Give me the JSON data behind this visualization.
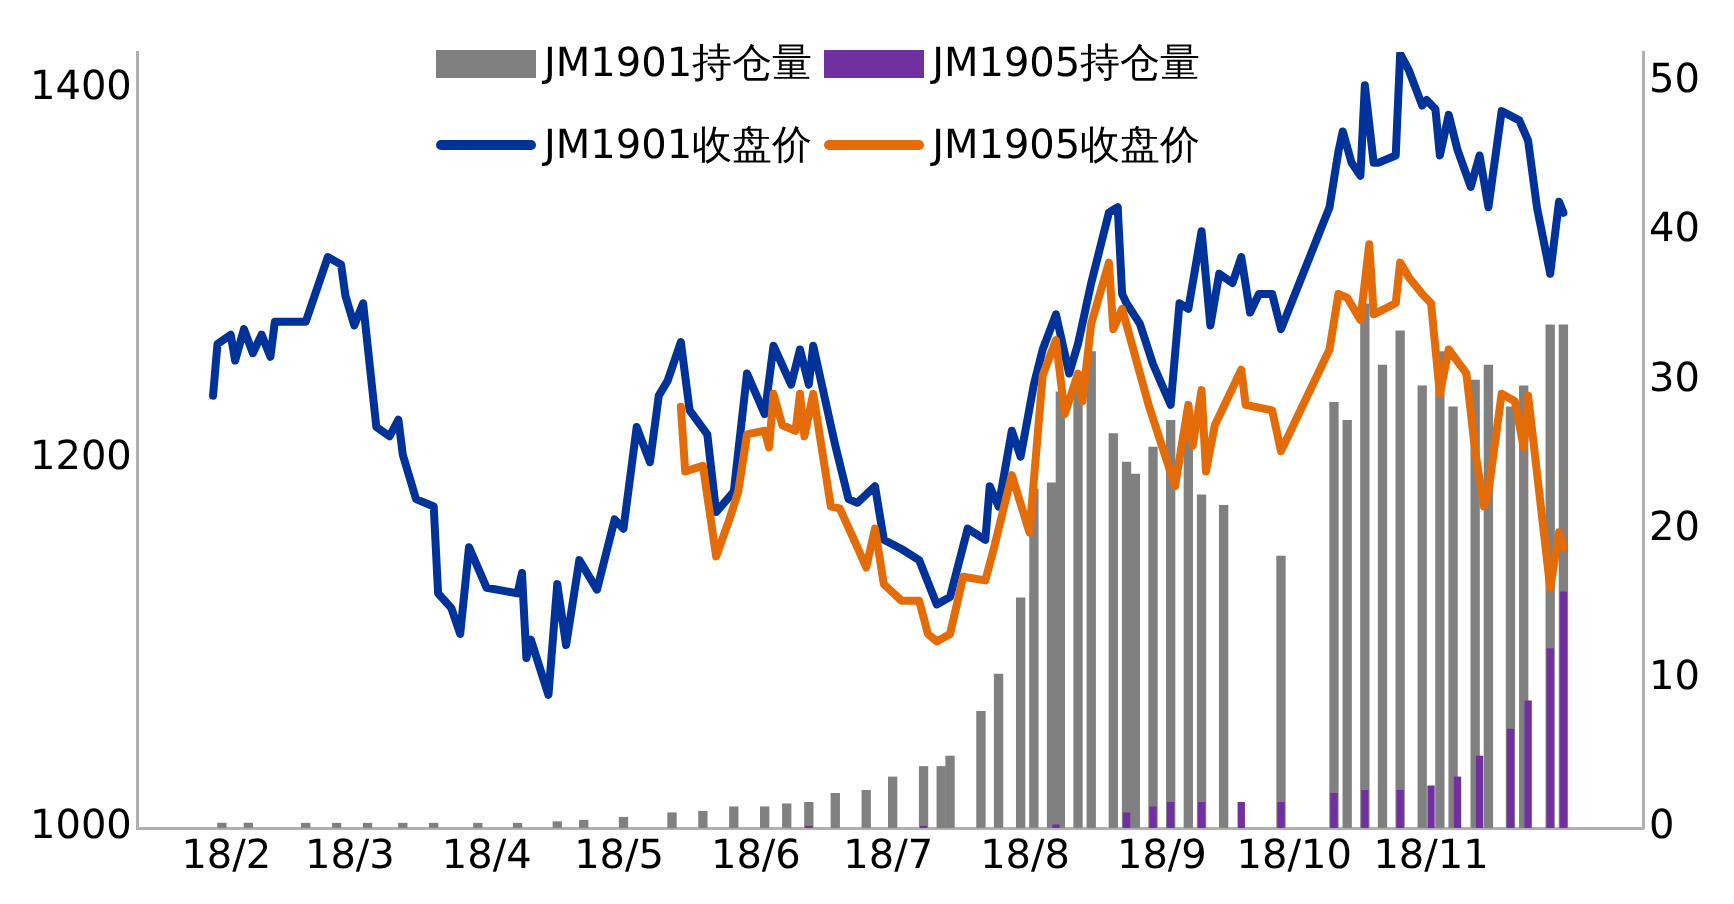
{
  "chart_data": {
    "type": "line",
    "xlim": [
      "--01-29",
      "--12-02"
    ],
    "xticks": [
      {
        "value": "--02-01",
        "label": "18/2"
      },
      {
        "value": "--03-01",
        "label": "18/3"
      },
      {
        "value": "--04-01",
        "label": "18/4"
      },
      {
        "value": "--05-01",
        "label": "18/5"
      },
      {
        "value": "--06-01",
        "label": "18/6"
      },
      {
        "value": "--07-01",
        "label": "18/7"
      },
      {
        "value": "--08-01",
        "label": "18/8"
      },
      {
        "value": "--09-01",
        "label": "18/9"
      },
      {
        "value": "--10-01",
        "label": "18/10"
      },
      {
        "value": "--11-01",
        "label": "18/11"
      }
    ],
    "ylim": [
      1000,
      1420
    ],
    "yticks": [
      1000,
      1200,
      1400
    ],
    "y2lim": [
      0,
      52
    ],
    "y2ticks": [
      0,
      10,
      20,
      30,
      40,
      50
    ],
    "grid": false,
    "legend": "top",
    "marker": "none",
    "line_style": "solid",
    "series": [
      {
        "name": "JM1901持仓量",
        "type": "bar",
        "axis": "y2",
        "color": "#808080",
        "x": [
          "--01-31",
          "--02-06",
          "--02-19",
          "--02-26",
          "--03-05",
          "--03-13",
          "--03-20",
          "--03-30",
          "--04-08",
          "--04-17",
          "--04-23",
          "--05-02",
          "--05-13",
          "--05-20",
          "--05-27",
          "--06-03",
          "--06-08",
          "--06-13",
          "--06-19",
          "--06-26",
          "--07-02",
          "--07-09",
          "--07-13",
          "--07-15",
          "--07-22",
          "--07-26",
          "--07-31",
          "--08-03",
          "--08-07",
          "--08-09",
          "--08-13",
          "--08-16",
          "--08-21",
          "--08-24",
          "--08-26",
          "--08-30",
          "--09-03",
          "--09-07",
          "--09-10",
          "--09-15",
          "--09-28",
          "--10-10",
          "--10-13",
          "--10-17",
          "--10-21",
          "--10-25",
          "--10-30",
          "--11-03",
          "--11-06",
          "--11-11",
          "--11-14",
          "--11-19",
          "--11-22",
          "--11-28",
          "--12-01"
        ],
        "values": [
          0.3,
          0.3,
          0.3,
          0.3,
          0.3,
          0.3,
          0.3,
          0.3,
          0.3,
          0.4,
          0.5,
          0.7,
          1.0,
          1.1,
          1.4,
          1.4,
          1.6,
          1.7,
          2.3,
          2.5,
          3.4,
          4.1,
          4.1,
          4.8,
          7.8,
          10.3,
          15.4,
          22.7,
          23.1,
          29.2,
          29.6,
          31.9,
          26.4,
          24.5,
          23.7,
          25.5,
          27.3,
          26.4,
          22.3,
          21.6,
          18.2,
          28.5,
          27.3,
          35.1,
          31.0,
          33.3,
          29.6,
          31.9,
          28.2,
          30.0,
          31.0,
          28.2,
          29.6,
          33.7,
          33.7
        ]
      },
      {
        "name": "JM1905持仓量",
        "type": "bar",
        "axis": "y2",
        "color": "#7030a0",
        "x": [
          "--06-13",
          "--07-09",
          "--08-08",
          "--08-24",
          "--08-30",
          "--09-03",
          "--09-10",
          "--09-19",
          "--09-28",
          "--10-10",
          "--10-17",
          "--10-25",
          "--11-01",
          "--11-07",
          "--11-12",
          "--11-19",
          "--11-23",
          "--11-28",
          "--12-01"
        ],
        "values": [
          0.1,
          0.1,
          0.2,
          1.0,
          1.4,
          1.7,
          1.7,
          1.7,
          1.7,
          2.3,
          2.5,
          2.5,
          2.8,
          3.4,
          4.8,
          6.6,
          8.5,
          12.0,
          15.8
        ]
      },
      {
        "name": "JM1901收盘价",
        "color": "#003399",
        "x": [
          "--01-29",
          "--01-30",
          "--02-02",
          "--02-03",
          "--02-05",
          "--02-07",
          "--02-09",
          "--02-11",
          "--02-12",
          "--02-19",
          "--02-24",
          "--02-27",
          "--02-28",
          "--03-02",
          "--03-04",
          "--03-07",
          "--03-10",
          "--03-12",
          "--03-13",
          "--03-16",
          "--03-20",
          "--03-21",
          "--03-24",
          "--03-26",
          "--03-28",
          "--04-01",
          "--04-08",
          "--04-09",
          "--04-10",
          "--04-11",
          "--04-15",
          "--04-17",
          "--04-19",
          "--04-22",
          "--04-26",
          "--04-30",
          "--05-02",
          "--05-05",
          "--05-08",
          "--05-10",
          "--05-12",
          "--05-15",
          "--05-17",
          "--05-21",
          "--05-23",
          "--05-27",
          "--05-30",
          "--06-03",
          "--06-05",
          "--06-09",
          "--06-11",
          "--06-13",
          "--06-14",
          "--06-19",
          "--06-22",
          "--06-24",
          "--06-28",
          "--06-30",
          "--07-04",
          "--07-08",
          "--07-12",
          "--07-15",
          "--07-19",
          "--07-23",
          "--07-24",
          "--07-26",
          "--07-29",
          "--07-31",
          "--08-03",
          "--08-05",
          "--08-08",
          "--08-11",
          "--08-13",
          "--08-14",
          "--08-16",
          "--08-20",
          "--08-22",
          "--08-23",
          "--08-24",
          "--08-27",
          "--08-30",
          "--09-03",
          "--09-05",
          "--09-07",
          "--09-10",
          "--09-12",
          "--09-14",
          "--09-17",
          "--09-19",
          "--09-21",
          "--09-23",
          "--09-26",
          "--09-28",
          "--10-09",
          "--10-11",
          "--10-12",
          "--10-14",
          "--10-16",
          "--10-17",
          "--10-19",
          "--10-20",
          "--10-24",
          "--10-25",
          "--10-27",
          "--10-30",
          "--10-31",
          "--11-02",
          "--11-03",
          "--11-05",
          "--11-07",
          "--11-10",
          "--11-12",
          "--11-14",
          "--11-17",
          "--11-21",
          "--11-23",
          "--11-25",
          "--11-28",
          "--11-30",
          "--12-01"
        ],
        "values": [
          1234,
          1262,
          1267,
          1253,
          1270,
          1257,
          1267,
          1255,
          1274,
          1274,
          1309,
          1305,
          1288,
          1272,
          1284,
          1217,
          1212,
          1221,
          1202,
          1178,
          1174,
          1127,
          1119,
          1105,
          1152,
          1130,
          1127,
          1138,
          1092,
          1102,
          1072,
          1132,
          1099,
          1145,
          1129,
          1167,
          1162,
          1217,
          1198,
          1234,
          1242,
          1263,
          1226,
          1213,
          1171,
          1182,
          1246,
          1224,
          1261,
          1240,
          1259,
          1240,
          1261,
          1207,
          1178,
          1176,
          1185,
          1156,
          1151,
          1145,
          1121,
          1125,
          1162,
          1156,
          1185,
          1174,
          1215,
          1201,
          1240,
          1259,
          1278,
          1246,
          1262,
          1273,
          1295,
          1333,
          1336,
          1289,
          1284,
          1273,
          1251,
          1229,
          1284,
          1281,
          1323,
          1272,
          1300,
          1295,
          1309,
          1279,
          1289,
          1289,
          1270,
          1336,
          1366,
          1377,
          1360,
          1353,
          1402,
          1360,
          1360,
          1364,
          1419,
          1410,
          1391,
          1394,
          1389,
          1364,
          1386,
          1367,
          1347,
          1364,
          1336,
          1388,
          1383,
          1372,
          1336,
          1300,
          1339,
          1333
        ]
      },
      {
        "name": "JM1905收盘价",
        "color": "#e36c09",
        "x": [
          "--05-15",
          "--05-16",
          "--05-20",
          "--05-23",
          "--05-26",
          "--05-28",
          "--05-30",
          "--06-03",
          "--06-04",
          "--06-05",
          "--06-07",
          "--06-10",
          "--06-11",
          "--06-12",
          "--06-14",
          "--06-18",
          "--06-20",
          "--06-24",
          "--06-26",
          "--06-28",
          "--06-30",
          "--07-04",
          "--07-08",
          "--07-10",
          "--07-12",
          "--07-15",
          "--07-18",
          "--07-23",
          "--07-25",
          "--07-29",
          "--08-02",
          "--08-05",
          "--08-08",
          "--08-10",
          "--08-13",
          "--08-14",
          "--08-16",
          "--08-20",
          "--08-21",
          "--08-23",
          "--08-29",
          "--09-04",
          "--09-07",
          "--09-08",
          "--09-10",
          "--09-11",
          "--09-13",
          "--09-19",
          "--09-20",
          "--09-26",
          "--09-28",
          "--10-09",
          "--10-11",
          "--10-13",
          "--10-16",
          "--10-18",
          "--10-19",
          "--10-24",
          "--10-25",
          "--10-27",
          "--10-30",
          "--11-01",
          "--11-03",
          "--11-05",
          "--11-09",
          "--11-11",
          "--11-13",
          "--11-14",
          "--11-17",
          "--11-20",
          "--11-22",
          "--11-23",
          "--11-28",
          "--11-30",
          "--12-01"
        ],
        "values": [
          1228,
          1193,
          1196,
          1147,
          1167,
          1182,
          1213,
          1215,
          1206,
          1235,
          1218,
          1215,
          1235,
          1212,
          1235,
          1174,
          1173,
          1152,
          1141,
          1162,
          1132,
          1123,
          1123,
          1105,
          1101,
          1105,
          1136,
          1134,
          1152,
          1191,
          1160,
          1245,
          1264,
          1224,
          1246,
          1231,
          1273,
          1306,
          1270,
          1281,
          1229,
          1185,
          1229,
          1207,
          1237,
          1193,
          1218,
          1248,
          1229,
          1226,
          1204,
          1259,
          1289,
          1287,
          1275,
          1316,
          1278,
          1284,
          1306,
          1298,
          1289,
          1284,
          1235,
          1259,
          1246,
          1204,
          1174,
          1182,
          1235,
          1231,
          1206,
          1234,
          1130,
          1160,
          1152
        ]
      }
    ]
  }
}
